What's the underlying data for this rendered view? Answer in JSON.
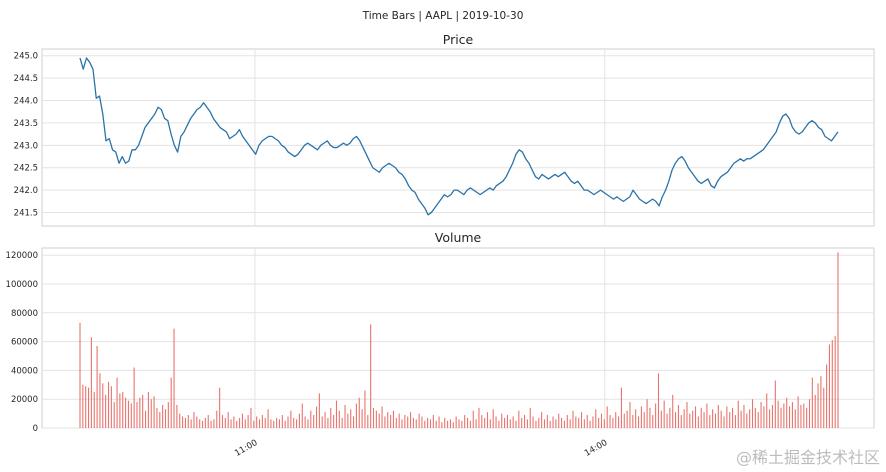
{
  "figure": {
    "suptitle": "Time Bars | AAPL | 2019-10-30",
    "watermark": "@稀土掘金技术社区"
  },
  "chart_data": [
    {
      "type": "line",
      "title": "Price",
      "xlabel": "",
      "ylabel": "",
      "grid": true,
      "color": "#2b73a8",
      "x_time_range": [
        "09:30",
        "16:00"
      ],
      "ylim": [
        241.2,
        245.15
      ],
      "yticks": [
        241.5,
        242.0,
        242.5,
        243.0,
        243.5,
        244.0,
        244.5,
        245.0
      ],
      "xgrid_times": [
        "11:00",
        "14:00"
      ],
      "series": [
        {
          "values": [
            244.95,
            244.7,
            244.95,
            244.85,
            244.7,
            244.05,
            244.1,
            243.7,
            243.1,
            243.15,
            242.9,
            242.85,
            242.6,
            242.75,
            242.6,
            242.65,
            242.9,
            242.9,
            243.0,
            243.2,
            243.4,
            243.5,
            243.6,
            243.7,
            243.85,
            243.8,
            243.6,
            243.55,
            243.25,
            243.0,
            242.85,
            243.2,
            243.3,
            243.45,
            243.6,
            243.7,
            243.8,
            243.85,
            243.95,
            243.85,
            243.75,
            243.6,
            243.5,
            243.4,
            243.35,
            243.3,
            243.15,
            243.2,
            243.25,
            243.35,
            243.2,
            243.1,
            243.0,
            242.9,
            242.8,
            243.0,
            243.1,
            243.15,
            243.2,
            243.2,
            243.15,
            243.1,
            243.0,
            242.95,
            242.85,
            242.8,
            242.75,
            242.8,
            242.9,
            243.0,
            243.05,
            243.0,
            242.95,
            242.9,
            243.0,
            243.05,
            243.1,
            243.0,
            242.95,
            242.95,
            243.0,
            243.05,
            243.0,
            243.05,
            243.15,
            243.2,
            243.1,
            242.95,
            242.8,
            242.65,
            242.5,
            242.45,
            242.4,
            242.5,
            242.55,
            242.6,
            242.55,
            242.5,
            242.4,
            242.35,
            242.25,
            242.1,
            242.0,
            241.95,
            241.8,
            241.7,
            241.6,
            241.45,
            241.5,
            241.6,
            241.7,
            241.8,
            241.9,
            241.85,
            241.9,
            242.0,
            242.0,
            241.95,
            241.9,
            242.0,
            242.05,
            242.0,
            241.95,
            241.9,
            241.95,
            242.0,
            242.05,
            242.0,
            242.1,
            242.15,
            242.2,
            242.3,
            242.45,
            242.6,
            242.8,
            242.9,
            242.85,
            242.7,
            242.6,
            242.45,
            242.3,
            242.25,
            242.35,
            242.3,
            242.25,
            242.3,
            242.35,
            242.3,
            242.35,
            242.4,
            242.3,
            242.2,
            242.15,
            242.2,
            242.1,
            242.0,
            242.0,
            241.95,
            241.9,
            241.95,
            242.0,
            241.95,
            241.9,
            241.85,
            241.8,
            241.85,
            241.8,
            241.75,
            241.8,
            241.85,
            242.0,
            241.9,
            241.8,
            241.75,
            241.7,
            241.75,
            241.8,
            241.75,
            241.65,
            241.85,
            242.0,
            242.2,
            242.45,
            242.6,
            242.7,
            242.75,
            242.65,
            242.5,
            242.4,
            242.3,
            242.2,
            242.15,
            242.2,
            242.25,
            242.1,
            242.05,
            242.2,
            242.3,
            242.35,
            242.4,
            242.5,
            242.6,
            242.65,
            242.7,
            242.65,
            242.7,
            242.7,
            242.75,
            242.8,
            242.85,
            242.9,
            243.0,
            243.1,
            243.2,
            243.3,
            243.5,
            243.65,
            243.7,
            243.6,
            243.4,
            243.3,
            243.25,
            243.3,
            243.4,
            243.5,
            243.55,
            243.5,
            243.4,
            243.35,
            243.2,
            243.15,
            243.1,
            243.2,
            243.3
          ]
        }
      ]
    },
    {
      "type": "bar",
      "title": "Volume",
      "xlabel": "",
      "ylabel": "",
      "grid": true,
      "color": "#e8746d",
      "x_time_range": [
        "09:30",
        "16:00"
      ],
      "ylim": [
        0,
        125000
      ],
      "yticks": [
        0,
        20000,
        40000,
        60000,
        80000,
        100000,
        120000
      ],
      "xticks": [
        "11:00",
        "14:00"
      ],
      "series": [
        {
          "values": [
            73000,
            30000,
            29000,
            28000,
            63000,
            25000,
            57000,
            38000,
            31000,
            23000,
            32000,
            29000,
            18000,
            35000,
            24000,
            25000,
            21000,
            19000,
            17000,
            42000,
            18000,
            21000,
            23000,
            12000,
            25000,
            20000,
            22000,
            14000,
            11000,
            16000,
            13000,
            18000,
            35000,
            69000,
            16000,
            10000,
            8000,
            7000,
            9000,
            6000,
            11000,
            8000,
            6000,
            5000,
            7000,
            9000,
            5000,
            6000,
            12000,
            28000,
            9000,
            7000,
            11000,
            6000,
            8000,
            5000,
            7000,
            10000,
            6000,
            9000,
            14000,
            5000,
            8000,
            6000,
            9000,
            7000,
            13000,
            6000,
            5000,
            7000,
            6000,
            9000,
            5000,
            8000,
            12000,
            7000,
            6000,
            10000,
            17000,
            8000,
            6000,
            12000,
            9000,
            15000,
            24000,
            8000,
            11000,
            7000,
            14000,
            9000,
            19000,
            12000,
            7000,
            16000,
            10000,
            13000,
            8000,
            17000,
            21000,
            13000,
            26000,
            9000,
            72000,
            14000,
            12000,
            10000,
            15000,
            8000,
            11000,
            9000,
            12000,
            7000,
            10000,
            6000,
            9000,
            8000,
            11000,
            7000,
            6000,
            10000,
            8000,
            5000,
            7000,
            6000,
            9000,
            5000,
            8000,
            4000,
            7000,
            5000,
            6000,
            4000,
            8000,
            6000,
            5000,
            9000,
            7000,
            5000,
            12000,
            6000,
            14000,
            9000,
            7000,
            11000,
            6000,
            13000,
            8000,
            5000,
            10000,
            7000,
            9000,
            6000,
            8000,
            5000,
            12000,
            7000,
            9000,
            6000,
            14000,
            8000,
            5000,
            7000,
            11000,
            6000,
            9000,
            5000,
            8000,
            6000,
            10000,
            7000,
            5000,
            9000,
            6000,
            12000,
            8000,
            7000,
            11000,
            6000,
            9000,
            5000,
            8000,
            13000,
            7000,
            10000,
            6000,
            15000,
            9000,
            7000,
            11000,
            8000,
            28000,
            10000,
            12000,
            18000,
            9000,
            13000,
            8000,
            15000,
            11000,
            20000,
            14000,
            9000,
            17000,
            38000,
            12000,
            19000,
            10000,
            14000,
            23000,
            11000,
            16000,
            9000,
            13000,
            18000,
            10000,
            12000,
            15000,
            8000,
            14000,
            11000,
            17000,
            9000,
            13000,
            10000,
            16000,
            12000,
            8000,
            15000,
            11000,
            14000,
            9000,
            19000,
            12000,
            16000,
            10000,
            13000,
            20000,
            14000,
            11000,
            18000,
            15000,
            24000,
            13000,
            16000,
            33000,
            19000,
            14000,
            17000,
            21000,
            15000,
            18000,
            13000,
            22000,
            16000,
            17000,
            14000,
            20000,
            35000,
            23000,
            31000,
            36000,
            28000,
            44000,
            58000,
            61000,
            64000,
            122000
          ]
        }
      ]
    }
  ]
}
